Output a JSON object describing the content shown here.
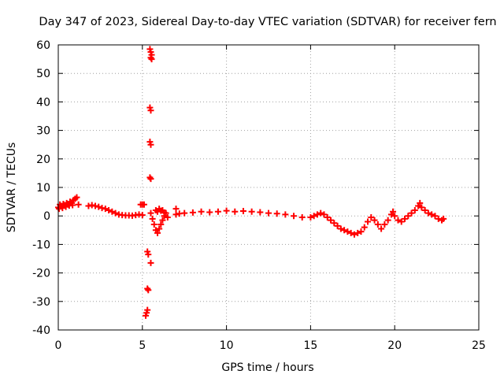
{
  "chart_data": {
    "type": "scatter",
    "title": "Day 347 of 2023, Sidereal Day-to-day VTEC variation (SDTVAR) for receiver fern",
    "xlabel": "GPS time / hours",
    "ylabel": "SDTVAR / TECUs",
    "xlim": [
      0,
      25
    ],
    "ylim": [
      -40,
      60
    ],
    "xticks": [
      0,
      5,
      10,
      15,
      20,
      25
    ],
    "yticks": [
      -40,
      -30,
      -20,
      -10,
      0,
      10,
      20,
      30,
      40,
      50,
      60
    ],
    "grid": true,
    "marker": "plus",
    "colors": {
      "series": "#ff0000",
      "axis": "#000000",
      "grid": "#a0a0a0"
    },
    "series": [
      {
        "name": "SDTVAR",
        "points": [
          [
            0.0,
            3.0
          ],
          [
            0.1,
            4.0
          ],
          [
            0.2,
            3.5
          ],
          [
            0.3,
            4.2
          ],
          [
            0.4,
            3.8
          ],
          [
            0.5,
            4.5
          ],
          [
            0.6,
            4.0
          ],
          [
            0.7,
            5.0
          ],
          [
            0.8,
            4.5
          ],
          [
            0.9,
            5.5
          ],
          [
            1.0,
            6.0
          ],
          [
            1.1,
            6.5
          ],
          [
            1.2,
            4.0
          ],
          [
            0.05,
            2.5
          ],
          [
            0.25,
            2.8
          ],
          [
            0.45,
            3.2
          ],
          [
            0.65,
            3.6
          ],
          [
            0.85,
            3.8
          ],
          [
            1.8,
            3.5
          ],
          [
            2.0,
            3.8
          ],
          [
            2.2,
            3.5
          ],
          [
            2.4,
            3.2
          ],
          [
            2.6,
            2.8
          ],
          [
            2.8,
            2.5
          ],
          [
            3.0,
            2.0
          ],
          [
            3.2,
            1.5
          ],
          [
            3.4,
            1.0
          ],
          [
            3.6,
            0.5
          ],
          [
            3.8,
            0.3
          ],
          [
            4.0,
            0.2
          ],
          [
            4.2,
            0.2
          ],
          [
            4.4,
            0.1
          ],
          [
            4.6,
            0.3
          ],
          [
            4.8,
            0.5
          ],
          [
            5.0,
            0.3
          ],
          [
            4.9,
            4.0
          ],
          [
            5.0,
            4.0
          ],
          [
            5.1,
            4.0
          ],
          [
            5.45,
            58.5
          ],
          [
            5.5,
            57.5
          ],
          [
            5.55,
            56.5
          ],
          [
            5.5,
            55.5
          ],
          [
            5.55,
            55.0
          ],
          [
            5.45,
            38.0
          ],
          [
            5.5,
            37.0
          ],
          [
            5.45,
            26.0
          ],
          [
            5.5,
            25.0
          ],
          [
            5.45,
            13.5
          ],
          [
            5.5,
            13.0
          ],
          [
            5.3,
            -12.5
          ],
          [
            5.35,
            -13.5
          ],
          [
            5.5,
            -16.5
          ],
          [
            5.3,
            -25.5
          ],
          [
            5.35,
            -26.0
          ],
          [
            5.25,
            -34.0
          ],
          [
            5.3,
            -33.0
          ],
          [
            5.2,
            -35.0
          ],
          [
            5.5,
            1.0
          ],
          [
            5.6,
            -1.0
          ],
          [
            5.7,
            -3.0
          ],
          [
            5.8,
            -5.0
          ],
          [
            5.9,
            -6.0
          ],
          [
            6.0,
            -4.5
          ],
          [
            6.1,
            -3.0
          ],
          [
            6.2,
            -1.5
          ],
          [
            6.3,
            0.0
          ],
          [
            6.4,
            1.0
          ],
          [
            6.5,
            -0.5
          ],
          [
            5.8,
            2.0
          ],
          [
            5.9,
            1.5
          ],
          [
            6.0,
            2.5
          ],
          [
            6.1,
            1.8
          ],
          [
            6.2,
            2.0
          ],
          [
            6.3,
            1.2
          ],
          [
            7.0,
            2.5
          ],
          [
            7.0,
            0.5
          ],
          [
            7.2,
            0.8
          ],
          [
            7.5,
            1.0
          ],
          [
            8.0,
            1.2
          ],
          [
            8.5,
            1.5
          ],
          [
            9.0,
            1.3
          ],
          [
            9.5,
            1.5
          ],
          [
            10.0,
            1.8
          ],
          [
            10.5,
            1.5
          ],
          [
            11.0,
            1.7
          ],
          [
            11.5,
            1.5
          ],
          [
            12.0,
            1.3
          ],
          [
            12.5,
            1.0
          ],
          [
            13.0,
            0.8
          ],
          [
            13.5,
            0.5
          ],
          [
            14.0,
            0.0
          ],
          [
            14.5,
            -0.5
          ],
          [
            15.0,
            -0.5
          ],
          [
            15.2,
            0.0
          ],
          [
            15.4,
            0.5
          ],
          [
            15.6,
            1.0
          ],
          [
            15.8,
            0.5
          ],
          [
            16.0,
            -0.5
          ],
          [
            16.2,
            -1.5
          ],
          [
            16.4,
            -2.5
          ],
          [
            16.6,
            -3.5
          ],
          [
            16.8,
            -4.5
          ],
          [
            17.0,
            -5.0
          ],
          [
            17.2,
            -5.5
          ],
          [
            17.4,
            -6.0
          ],
          [
            17.6,
            -6.5
          ],
          [
            17.8,
            -6.0
          ],
          [
            18.0,
            -5.5
          ],
          [
            18.2,
            -4.0
          ],
          [
            18.4,
            -2.0
          ],
          [
            18.6,
            -0.5
          ],
          [
            18.8,
            -1.5
          ],
          [
            19.0,
            -3.0
          ],
          [
            19.2,
            -4.5
          ],
          [
            19.4,
            -3.0
          ],
          [
            19.6,
            -1.5
          ],
          [
            19.8,
            0.5
          ],
          [
            19.9,
            1.5
          ],
          [
            20.0,
            0.0
          ],
          [
            20.2,
            -1.5
          ],
          [
            20.4,
            -2.0
          ],
          [
            20.6,
            -1.0
          ],
          [
            20.8,
            0.0
          ],
          [
            21.0,
            1.0
          ],
          [
            21.2,
            2.0
          ],
          [
            21.4,
            3.5
          ],
          [
            21.5,
            4.5
          ],
          [
            21.6,
            3.0
          ],
          [
            21.8,
            2.0
          ],
          [
            22.0,
            1.0
          ],
          [
            22.2,
            0.5
          ],
          [
            22.4,
            0.0
          ],
          [
            22.6,
            -1.0
          ],
          [
            22.8,
            -1.5
          ],
          [
            22.9,
            -1.0
          ]
        ]
      }
    ]
  }
}
